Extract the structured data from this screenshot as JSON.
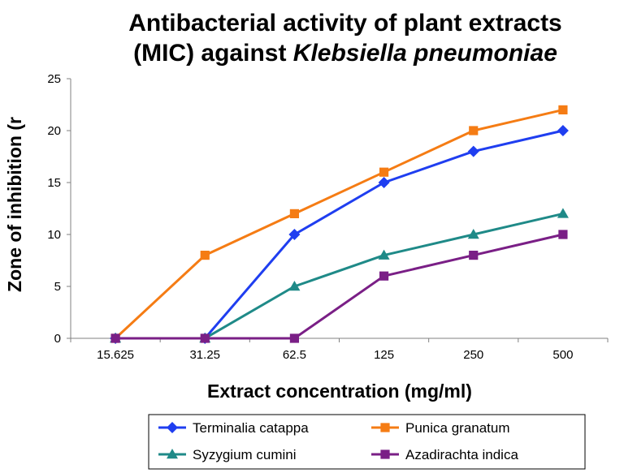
{
  "chart_data": {
    "type": "line",
    "title_line1": "Antibacterial activity of plant extracts",
    "title_line2_prefix": "(MIC) against ",
    "title_line2_italic": "Klebsiella pneumoniae",
    "xlabel": "Extract concentration (mg/ml)",
    "ylabel": "Zone of inhibition (r",
    "categories": [
      "15.625",
      "31.25",
      "62.5",
      "125",
      "250",
      "500"
    ],
    "ylim": [
      0,
      25
    ],
    "yticks": [
      "0",
      "5",
      "10",
      "15",
      "20",
      "25"
    ],
    "grid": false,
    "legend_position": "bottom",
    "series": [
      {
        "name": "Terminalia catappa",
        "color": "#1f3ef0",
        "marker": "diamond",
        "values": [
          0,
          0,
          10,
          15,
          18,
          20
        ]
      },
      {
        "name": "Punica granatum",
        "color": "#f57c14",
        "marker": "square",
        "values": [
          0,
          8,
          12,
          16,
          20,
          22
        ]
      },
      {
        "name": "Syzygium cumini",
        "color": "#1f8a88",
        "marker": "triangle",
        "values": [
          0,
          0,
          5,
          8,
          10,
          12
        ]
      },
      {
        "name": "Azadirachta indica",
        "color": "#7a1f86",
        "marker": "square",
        "values": [
          0,
          0,
          0,
          6,
          8,
          10
        ]
      }
    ]
  }
}
